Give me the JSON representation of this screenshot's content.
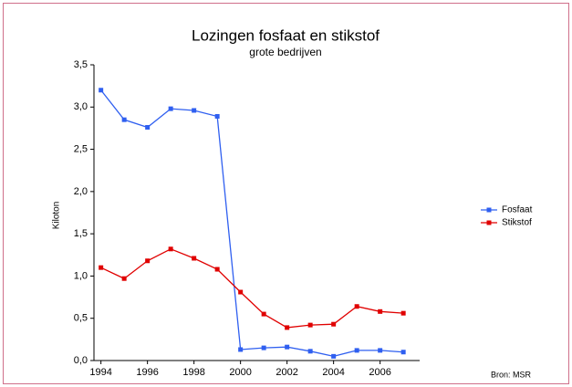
{
  "chart_data": {
    "type": "line",
    "title": "Lozingen fosfaat en stikstof",
    "subtitle": "grote bedrijven",
    "y_label": "Kiloton",
    "source": "Bron: MSR",
    "x": [
      1994,
      1995,
      1996,
      1997,
      1998,
      1999,
      2000,
      2001,
      2002,
      2003,
      2004,
      2005,
      2006,
      2007
    ],
    "series": [
      {
        "name": "Fosfaat",
        "color": "#2f5ff0",
        "values": [
          3.2,
          2.85,
          2.76,
          2.98,
          2.96,
          2.89,
          0.13,
          0.15,
          0.16,
          0.11,
          0.05,
          0.12,
          0.12,
          0.1
        ]
      },
      {
        "name": "Stikstof",
        "color": "#e00000",
        "values": [
          1.1,
          0.97,
          1.18,
          1.32,
          1.21,
          1.08,
          0.81,
          0.55,
          0.39,
          0.42,
          0.43,
          0.64,
          0.58,
          0.56
        ]
      }
    ],
    "xlim": [
      1993.7,
      2007.7
    ],
    "xticks": [
      1994,
      1996,
      1998,
      2000,
      2002,
      2004,
      2006
    ],
    "ylim": [
      0,
      3.5
    ],
    "yticks": [
      {
        "value": 0,
        "label": "0,0"
      },
      {
        "value": 0.5,
        "label": "0,5"
      },
      {
        "value": 1,
        "label": "1,0"
      },
      {
        "value": 1.5,
        "label": "1,5"
      },
      {
        "value": 2,
        "label": "2,0"
      },
      {
        "value": 2.5,
        "label": "2,5"
      },
      {
        "value": 3,
        "label": "3,0"
      },
      {
        "value": 3.5,
        "label": "3,5"
      }
    ],
    "legend": "right"
  }
}
